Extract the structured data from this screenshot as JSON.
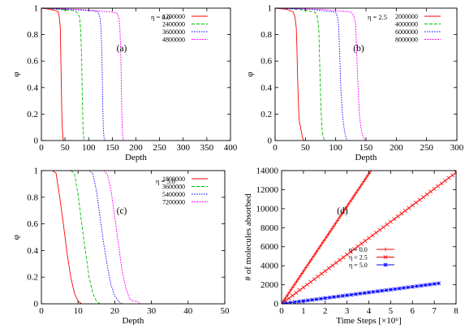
{
  "colors": {
    "series1": "#ff0000",
    "series2": "#00bb00",
    "series3": "#0000ff",
    "series4": "#ff00ff",
    "axis": "#000000"
  },
  "chart_data": [
    {
      "type": "line",
      "panel_label": "(a)",
      "annotation": "η = 0.0",
      "xlabel": "Depth",
      "ylabel": "φ",
      "xlim": [
        0,
        400
      ],
      "ylim": [
        0,
        1
      ],
      "xticks": [
        "0",
        "50",
        "100",
        "150",
        "200",
        "250",
        "300",
        "350",
        "400"
      ],
      "yticks": [
        "0",
        "0.2",
        "0.4",
        "0.6",
        "0.8",
        "1"
      ],
      "legend_position": "top-right",
      "series": [
        {
          "name": "1200000",
          "color": "#ff0000",
          "dash": "solid",
          "x": [
            0,
            20,
            32,
            36,
            38,
            40,
            41,
            42,
            43,
            44,
            45,
            46,
            48
          ],
          "y": [
            1,
            0.99,
            0.98,
            0.97,
            0.93,
            0.85,
            0.65,
            0.45,
            0.25,
            0.12,
            0.05,
            0.01,
            0
          ]
        },
        {
          "name": "2400000",
          "color": "#00bb00",
          "dash": "dashed",
          "x": [
            0,
            40,
            70,
            78,
            81,
            83,
            85,
            86,
            87,
            88,
            89,
            90,
            92
          ],
          "y": [
            1,
            0.99,
            0.98,
            0.96,
            0.92,
            0.85,
            0.65,
            0.45,
            0.25,
            0.1,
            0.04,
            0.01,
            0
          ]
        },
        {
          "name": "3600000",
          "color": "#0000ff",
          "dash": "dotted",
          "x": [
            0,
            60,
            110,
            120,
            124,
            126,
            128,
            129,
            130,
            131,
            132,
            133,
            135
          ],
          "y": [
            1,
            0.99,
            0.98,
            0.97,
            0.93,
            0.85,
            0.65,
            0.45,
            0.25,
            0.1,
            0.04,
            0.01,
            0
          ]
        },
        {
          "name": "4800000",
          "color": "#ff00ff",
          "dash": "dashdot",
          "x": [
            0,
            80,
            150,
            160,
            164,
            166,
            168,
            169,
            170,
            171,
            172,
            173,
            175
          ],
          "y": [
            1,
            0.99,
            0.97,
            0.96,
            0.93,
            0.85,
            0.65,
            0.45,
            0.25,
            0.1,
            0.04,
            0.01,
            0
          ]
        }
      ]
    },
    {
      "type": "line",
      "panel_label": "(b)",
      "annotation": "η = 2.5",
      "xlabel": "Depth",
      "ylabel": "φ",
      "xlim": [
        0,
        300
      ],
      "ylim": [
        0,
        1
      ],
      "xticks": [
        "0",
        "50",
        "100",
        "150",
        "200",
        "250",
        "300"
      ],
      "yticks": [
        "0",
        "0.2",
        "0.4",
        "0.6",
        "0.8",
        "1"
      ],
      "legend_position": "top-right",
      "series": [
        {
          "name": "2000000",
          "color": "#ff0000",
          "dash": "solid",
          "x": [
            0,
            20,
            30,
            33,
            35,
            36,
            37,
            38,
            39,
            40,
            42,
            44,
            46,
            48
          ],
          "y": [
            1,
            0.99,
            0.97,
            0.93,
            0.85,
            0.7,
            0.5,
            0.35,
            0.22,
            0.14,
            0.1,
            0.05,
            0.01,
            0
          ]
        },
        {
          "name": "4000000",
          "color": "#00bb00",
          "dash": "dashed",
          "x": [
            0,
            40,
            66,
            70,
            72,
            73,
            74,
            75,
            76,
            77,
            78,
            80,
            82
          ],
          "y": [
            1,
            0.99,
            0.97,
            0.93,
            0.85,
            0.7,
            0.5,
            0.35,
            0.22,
            0.12,
            0.06,
            0.02,
            0
          ]
        },
        {
          "name": "6000000",
          "color": "#0000ff",
          "dash": "dotted",
          "x": [
            0,
            60,
            100,
            103,
            105,
            106,
            107,
            108,
            109,
            110,
            111,
            113,
            115,
            117,
            119
          ],
          "y": [
            1,
            0.99,
            0.97,
            0.93,
            0.86,
            0.72,
            0.6,
            0.45,
            0.35,
            0.3,
            0.2,
            0.12,
            0.06,
            0.02,
            0
          ]
        },
        {
          "name": "8000000",
          "color": "#ff00ff",
          "dash": "dashdot",
          "x": [
            0,
            80,
            125,
            130,
            133,
            134,
            135,
            136,
            137,
            138,
            139,
            141,
            143,
            145,
            147,
            149
          ],
          "y": [
            1,
            0.99,
            0.97,
            0.94,
            0.88,
            0.75,
            0.62,
            0.5,
            0.4,
            0.3,
            0.2,
            0.12,
            0.06,
            0.03,
            0.01,
            0
          ]
        }
      ]
    },
    {
      "type": "line",
      "panel_label": "(c)",
      "annotation": "η = 5.0",
      "xlabel": "Depth",
      "ylabel": "φ",
      "xlim": [
        0,
        50
      ],
      "ylim": [
        0,
        1
      ],
      "xticks": [
        "0",
        "10",
        "20",
        "30",
        "40",
        "50"
      ],
      "yticks": [
        "0",
        "0.2",
        "0.4",
        "0.6",
        "0.8",
        "1"
      ],
      "legend_position": "top-right",
      "series": [
        {
          "name": "1800000",
          "color": "#ff0000",
          "dash": "solid",
          "x": [
            3,
            4,
            5,
            6,
            7,
            8,
            9,
            10,
            11
          ],
          "y": [
            1,
            0.98,
            0.8,
            0.6,
            0.38,
            0.2,
            0.08,
            0.02,
            0
          ]
        },
        {
          "name": "3600000",
          "color": "#00bb00",
          "dash": "dashed",
          "x": [
            8,
            9,
            10,
            11,
            12,
            13,
            14,
            15,
            16
          ],
          "y": [
            1,
            0.98,
            0.82,
            0.6,
            0.4,
            0.2,
            0.08,
            0.02,
            0
          ]
        },
        {
          "name": "5400000",
          "color": "#0000ff",
          "dash": "dotted",
          "x": [
            13,
            14,
            15,
            16,
            17,
            18,
            19,
            20,
            21,
            22
          ],
          "y": [
            1,
            0.98,
            0.85,
            0.65,
            0.45,
            0.28,
            0.14,
            0.06,
            0.02,
            0
          ]
        },
        {
          "name": "7200000",
          "color": "#ff00ff",
          "dash": "dashdot",
          "x": [
            17,
            18,
            19,
            20,
            21,
            22,
            23,
            24,
            25,
            26,
            27
          ],
          "y": [
            1,
            0.97,
            0.85,
            0.65,
            0.45,
            0.25,
            0.12,
            0.04,
            0.02,
            0.02,
            0
          ]
        }
      ]
    },
    {
      "type": "line",
      "panel_label": "(d)",
      "xlabel": "Time Steps [×10⁶]",
      "ylabel": "# of molecules absorbed",
      "xlim": [
        0,
        8
      ],
      "ylim": [
        0,
        14000
      ],
      "xticks": [
        "0",
        "1",
        "2",
        "3",
        "4",
        "5",
        "6",
        "7",
        "8"
      ],
      "yticks": [
        "0",
        "2000",
        "4000",
        "6000",
        "8000",
        "10000",
        "12000",
        "14000"
      ],
      "legend_position": "center-right",
      "series": [
        {
          "name": "η = 0.0",
          "color": "#ff0000",
          "marker": "plus",
          "x_start": 0,
          "x_end": 4.1,
          "y_start": 0,
          "y_end": 14000
        },
        {
          "name": "η = 2.5",
          "color": "#ff0000",
          "marker": "cross",
          "x_start": 0,
          "x_end": 8.0,
          "y_start": 0,
          "y_end": 13800
        },
        {
          "name": "η = 5.0",
          "color": "#0000ff",
          "marker": "star",
          "x_start": 0,
          "x_end": 7.2,
          "y_start": 0,
          "y_end": 2150
        }
      ]
    }
  ]
}
